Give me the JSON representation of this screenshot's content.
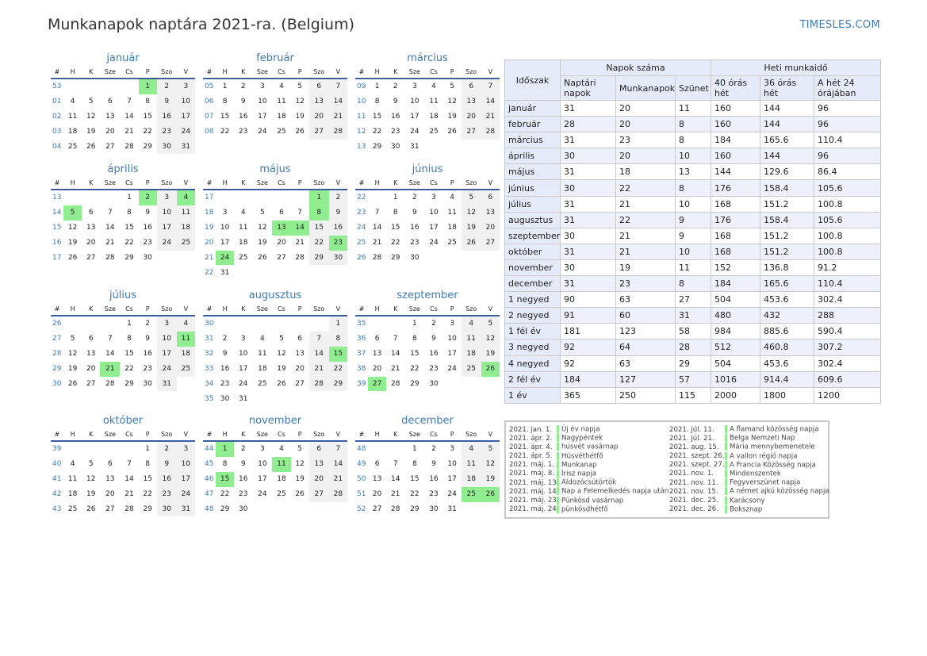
{
  "header": {
    "title": "Munkanapok naptára 2021-ra. (Belgium)",
    "brand": "TIMESLES.COM"
  },
  "weekdays": [
    "#",
    "H",
    "K",
    "Sze",
    "Cs",
    "P",
    "Szo",
    "V"
  ],
  "months": [
    {
      "name": "január",
      "weeks": [
        [
          53,
          null,
          null,
          null,
          null,
          1,
          2,
          3
        ],
        [
          1,
          4,
          5,
          6,
          7,
          8,
          9,
          10
        ],
        [
          2,
          11,
          12,
          13,
          14,
          15,
          16,
          17
        ],
        [
          3,
          18,
          19,
          20,
          21,
          22,
          23,
          24
        ],
        [
          4,
          25,
          26,
          27,
          28,
          29,
          30,
          31
        ]
      ],
      "holidays": [
        1
      ]
    },
    {
      "name": "február",
      "weeks": [
        [
          5,
          1,
          2,
          3,
          4,
          5,
          6,
          7
        ],
        [
          6,
          8,
          9,
          10,
          11,
          12,
          13,
          14
        ],
        [
          7,
          15,
          16,
          17,
          18,
          19,
          20,
          21
        ],
        [
          8,
          22,
          23,
          24,
          25,
          26,
          27,
          28
        ]
      ],
      "holidays": []
    },
    {
      "name": "március",
      "weeks": [
        [
          9,
          1,
          2,
          3,
          4,
          5,
          6,
          7
        ],
        [
          10,
          8,
          9,
          10,
          11,
          12,
          13,
          14
        ],
        [
          11,
          15,
          16,
          17,
          18,
          19,
          20,
          21
        ],
        [
          12,
          22,
          23,
          24,
          25,
          26,
          27,
          28
        ],
        [
          13,
          29,
          30,
          31,
          null,
          null,
          null,
          null
        ]
      ],
      "holidays": []
    },
    {
      "name": "április",
      "weeks": [
        [
          13,
          null,
          null,
          null,
          1,
          2,
          3,
          4
        ],
        [
          14,
          5,
          6,
          7,
          8,
          9,
          10,
          11
        ],
        [
          15,
          12,
          13,
          14,
          15,
          16,
          17,
          18
        ],
        [
          16,
          19,
          20,
          21,
          22,
          23,
          24,
          25
        ],
        [
          17,
          26,
          27,
          28,
          29,
          30,
          null,
          null
        ]
      ],
      "holidays": [
        2,
        4,
        5
      ]
    },
    {
      "name": "május",
      "weeks": [
        [
          17,
          null,
          null,
          null,
          null,
          null,
          1,
          2
        ],
        [
          18,
          3,
          4,
          5,
          6,
          7,
          8,
          9
        ],
        [
          19,
          10,
          11,
          12,
          13,
          14,
          15,
          16
        ],
        [
          20,
          17,
          18,
          19,
          20,
          21,
          22,
          23
        ],
        [
          21,
          24,
          25,
          26,
          27,
          28,
          29,
          30
        ],
        [
          22,
          31,
          null,
          null,
          null,
          null,
          null,
          null
        ]
      ],
      "holidays": [
        1,
        8,
        13,
        14,
        23,
        24
      ]
    },
    {
      "name": "június",
      "weeks": [
        [
          22,
          null,
          1,
          2,
          3,
          4,
          5,
          6
        ],
        [
          23,
          7,
          8,
          9,
          10,
          11,
          12,
          13
        ],
        [
          24,
          14,
          15,
          16,
          17,
          18,
          19,
          20
        ],
        [
          25,
          21,
          22,
          23,
          24,
          25,
          26,
          27
        ],
        [
          26,
          28,
          29,
          30,
          null,
          null,
          null,
          null
        ]
      ],
      "holidays": []
    },
    {
      "name": "július",
      "weeks": [
        [
          26,
          null,
          null,
          null,
          1,
          2,
          3,
          4
        ],
        [
          27,
          5,
          6,
          7,
          8,
          9,
          10,
          11
        ],
        [
          28,
          12,
          13,
          14,
          15,
          16,
          17,
          18
        ],
        [
          29,
          19,
          20,
          21,
          22,
          23,
          24,
          25
        ],
        [
          30,
          26,
          27,
          28,
          29,
          30,
          31,
          null
        ]
      ],
      "holidays": [
        11,
        21
      ]
    },
    {
      "name": "augusztus",
      "weeks": [
        [
          30,
          null,
          null,
          null,
          null,
          null,
          null,
          1
        ],
        [
          31,
          2,
          3,
          4,
          5,
          6,
          7,
          8
        ],
        [
          32,
          9,
          10,
          11,
          12,
          13,
          14,
          15
        ],
        [
          33,
          16,
          17,
          18,
          19,
          20,
          21,
          22
        ],
        [
          34,
          23,
          24,
          25,
          26,
          27,
          28,
          29
        ],
        [
          35,
          30,
          31,
          null,
          null,
          null,
          null,
          null
        ]
      ],
      "holidays": [
        15
      ]
    },
    {
      "name": "szeptember",
      "weeks": [
        [
          35,
          null,
          null,
          1,
          2,
          3,
          4,
          5
        ],
        [
          36,
          6,
          7,
          8,
          9,
          10,
          11,
          12
        ],
        [
          37,
          13,
          14,
          15,
          16,
          17,
          18,
          19
        ],
        [
          38,
          20,
          21,
          22,
          23,
          24,
          25,
          26
        ],
        [
          39,
          27,
          28,
          29,
          30,
          null,
          null,
          null
        ]
      ],
      "holidays": [
        26,
        27
      ]
    },
    {
      "name": "október",
      "weeks": [
        [
          39,
          null,
          null,
          null,
          null,
          1,
          2,
          3
        ],
        [
          40,
          4,
          5,
          6,
          7,
          8,
          9,
          10
        ],
        [
          41,
          11,
          12,
          13,
          14,
          15,
          16,
          17
        ],
        [
          42,
          18,
          19,
          20,
          21,
          22,
          23,
          24
        ],
        [
          43,
          25,
          26,
          27,
          28,
          29,
          30,
          31
        ]
      ],
      "holidays": []
    },
    {
      "name": "november",
      "weeks": [
        [
          44,
          1,
          2,
          3,
          4,
          5,
          6,
          7
        ],
        [
          45,
          8,
          9,
          10,
          11,
          12,
          13,
          14
        ],
        [
          46,
          15,
          16,
          17,
          18,
          19,
          20,
          21
        ],
        [
          47,
          22,
          23,
          24,
          25,
          26,
          27,
          28
        ],
        [
          48,
          29,
          30,
          null,
          null,
          null,
          null,
          null
        ]
      ],
      "holidays": [
        1,
        11,
        15
      ]
    },
    {
      "name": "december",
      "weeks": [
        [
          48,
          null,
          null,
          1,
          2,
          3,
          4,
          5
        ],
        [
          49,
          6,
          7,
          8,
          9,
          10,
          11,
          12
        ],
        [
          50,
          13,
          14,
          15,
          16,
          17,
          18,
          19
        ],
        [
          51,
          20,
          21,
          22,
          23,
          24,
          25,
          26
        ],
        [
          52,
          27,
          28,
          29,
          30,
          31,
          null,
          null
        ]
      ],
      "holidays": [
        25,
        26
      ]
    }
  ],
  "stats": {
    "corner": "Időszak",
    "group1": "Napok száma",
    "group2": "Heti munkaidő",
    "cols": [
      "Naptári napok",
      "Munkanapok",
      "Szünet",
      "40 órás hét",
      "36 órás hét",
      "A hét 24 órájában"
    ],
    "rows": [
      [
        "január",
        "31",
        "20",
        "11",
        "160",
        "144",
        "96"
      ],
      [
        "február",
        "28",
        "20",
        "8",
        "160",
        "144",
        "96"
      ],
      [
        "március",
        "31",
        "23",
        "8",
        "184",
        "165.6",
        "110.4"
      ],
      [
        "április",
        "30",
        "20",
        "10",
        "160",
        "144",
        "96"
      ],
      [
        "május",
        "31",
        "18",
        "13",
        "144",
        "129.6",
        "86.4"
      ],
      [
        "június",
        "30",
        "22",
        "8",
        "176",
        "158.4",
        "105.6"
      ],
      [
        "július",
        "31",
        "21",
        "10",
        "168",
        "151.2",
        "100.8"
      ],
      [
        "augusztus",
        "31",
        "22",
        "9",
        "176",
        "158.4",
        "105.6"
      ],
      [
        "szeptember",
        "30",
        "21",
        "9",
        "168",
        "151.2",
        "100.8"
      ],
      [
        "október",
        "31",
        "21",
        "10",
        "168",
        "151.2",
        "100.8"
      ],
      [
        "november",
        "30",
        "19",
        "11",
        "152",
        "136.8",
        "91.2"
      ],
      [
        "december",
        "31",
        "23",
        "8",
        "184",
        "165.6",
        "110.4"
      ],
      [
        "1 negyed",
        "90",
        "63",
        "27",
        "504",
        "453.6",
        "302.4"
      ],
      [
        "2 negyed",
        "91",
        "60",
        "31",
        "480",
        "432",
        "288"
      ],
      [
        "1 fél év",
        "181",
        "123",
        "58",
        "984",
        "885.6",
        "590.4"
      ],
      [
        "3 negyed",
        "92",
        "64",
        "28",
        "512",
        "460.8",
        "307.2"
      ],
      [
        "4 negyed",
        "92",
        "63",
        "29",
        "504",
        "453.6",
        "302.4"
      ],
      [
        "2 fél év",
        "184",
        "127",
        "57",
        "1016",
        "914.4",
        "609.6"
      ],
      [
        "1 év",
        "365",
        "250",
        "115",
        "2000",
        "1800",
        "1200"
      ]
    ]
  },
  "holidays_list": {
    "left": [
      {
        "date": "2021. jan. 1.",
        "name": "Új év napja"
      },
      {
        "date": "2021. ápr. 2.",
        "name": "Nagypéntek"
      },
      {
        "date": "2021. ápr. 4.",
        "name": "húsvét vasárnap"
      },
      {
        "date": "2021. ápr. 5.",
        "name": "Húsvéthétfő"
      },
      {
        "date": "2021. máj. 1.",
        "name": "Munkanap"
      },
      {
        "date": "2021. máj. 8.",
        "name": "Írisz napja"
      },
      {
        "date": "2021. máj. 13.",
        "name": "Áldozócsütörtök"
      },
      {
        "date": "2021. máj. 14.",
        "name": "Nap a Felemelkedés napja után"
      },
      {
        "date": "2021. máj. 23.",
        "name": "Pünkösd vasárnap"
      },
      {
        "date": "2021. máj. 24.",
        "name": "pünkösdhétfő"
      }
    ],
    "right": [
      {
        "date": "2021. júl. 11.",
        "name": "A flamand közösség napja"
      },
      {
        "date": "2021. júl. 21.",
        "name": "Belga Nemzeti Nap"
      },
      {
        "date": "2021. aug. 15.",
        "name": "Mária mennybemenetele"
      },
      {
        "date": "2021. szept. 26.",
        "name": "A vallon régió napja"
      },
      {
        "date": "2021. szept. 27.",
        "name": "A Francia Közösség napja"
      },
      {
        "date": "2021. nov. 1.",
        "name": "Mindenszentek"
      },
      {
        "date": "2021. nov. 11.",
        "name": "Fegyverszünet napja"
      },
      {
        "date": "2021. nov. 15.",
        "name": "A német ajkú közösség napja"
      },
      {
        "date": "2021. dec. 25.",
        "name": "Karácsony"
      },
      {
        "date": "2021. dec. 26.",
        "name": "Boksznap"
      }
    ]
  }
}
